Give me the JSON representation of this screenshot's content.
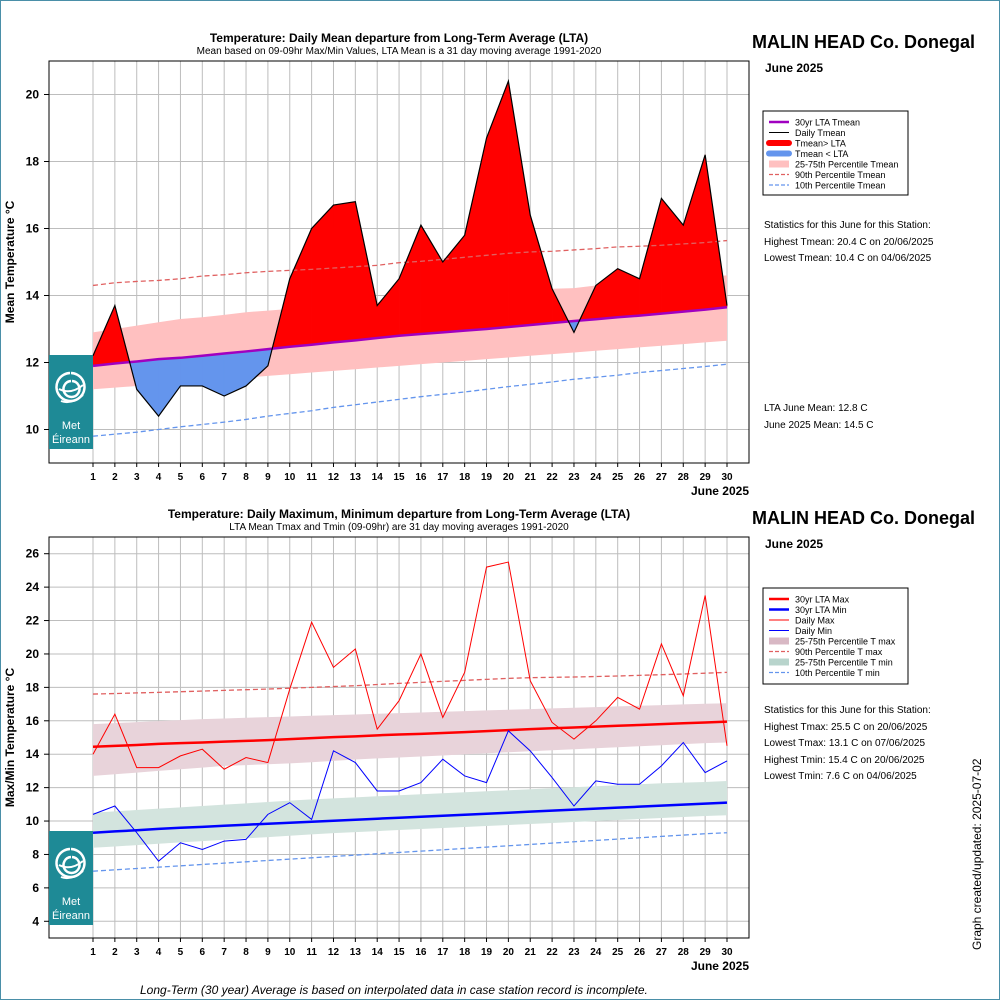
{
  "station": "MALIN HEAD Co. Donegal",
  "period": "June 2025",
  "graph_updated": "Graph created/updated:  2025-07-02",
  "footnote": "Long-Term (30 year) Average is based on interpolated data in case station record is incomplete.",
  "logo_text": [
    "Met",
    "Éireann"
  ],
  "chart_data": [
    {
      "type": "line",
      "title": "Temperature: Daily Mean departure from Long-Term Average (LTA)",
      "subtitle": "Mean based on 09-09hr Max/Min Values, LTA Mean is a 31 day moving average 1991-2020",
      "xlabel": "June 2025",
      "ylabel": "Mean Temperature °C",
      "ylim": [
        9,
        21
      ],
      "yticks": [
        10,
        12,
        14,
        16,
        18,
        20
      ],
      "x": [
        1,
        2,
        3,
        4,
        5,
        6,
        7,
        8,
        9,
        10,
        11,
        12,
        13,
        14,
        15,
        16,
        17,
        18,
        19,
        20,
        21,
        22,
        23,
        24,
        25,
        26,
        27,
        28,
        29,
        30
      ],
      "grid": true,
      "legend_position": "right",
      "legend": [
        {
          "label": "30yr LTA Tmean",
          "color": "#a000c0",
          "kind": "line",
          "width": 2.5
        },
        {
          "label": "Daily Tmean",
          "color": "#000000",
          "kind": "line",
          "width": 1
        },
        {
          "label": "Tmean> LTA",
          "color": "#ff0000",
          "kind": "thick"
        },
        {
          "label": "Tmean < LTA",
          "color": "#6495ed",
          "kind": "thick"
        },
        {
          "label": "25-75th Percentile Tmean",
          "color": "#ffc0c0",
          "kind": "band"
        },
        {
          "label": "90th Percentile Tmean",
          "color": "#e06060",
          "kind": "dash"
        },
        {
          "label": "10th Percentile Tmean",
          "color": "#6495ed",
          "kind": "dash"
        }
      ],
      "series": [
        {
          "name": "Daily Tmean",
          "values": [
            12.2,
            13.7,
            11.2,
            10.4,
            11.3,
            11.3,
            11.0,
            11.3,
            11.9,
            14.5,
            16.0,
            16.7,
            16.8,
            13.7,
            14.5,
            16.1,
            15.0,
            15.8,
            18.7,
            20.4,
            16.4,
            14.2,
            12.9,
            14.3,
            14.8,
            14.5,
            16.9,
            16.1,
            18.2,
            13.7
          ]
        },
        {
          "name": "30yr LTA Tmean",
          "values": [
            11.9,
            11.97,
            12.03,
            12.1,
            12.14,
            12.2,
            12.27,
            12.33,
            12.4,
            12.47,
            12.53,
            12.6,
            12.66,
            12.73,
            12.8,
            12.85,
            12.9,
            12.95,
            13.0,
            13.06,
            13.12,
            13.18,
            13.24,
            13.29,
            13.35,
            13.4,
            13.46,
            13.52,
            13.58,
            13.65
          ]
        },
        {
          "name": "25-75th Percentile Tmean low",
          "values": [
            11.2,
            11.25,
            11.3,
            11.35,
            11.4,
            11.45,
            11.5,
            11.55,
            11.6,
            11.65,
            11.7,
            11.75,
            11.8,
            11.85,
            11.9,
            11.95,
            12.0,
            12.05,
            12.1,
            12.15,
            12.2,
            12.25,
            12.3,
            12.35,
            12.4,
            12.45,
            12.5,
            12.55,
            12.6,
            12.65
          ]
        },
        {
          "name": "25-75th Percentile Tmean high",
          "values": [
            12.9,
            13.0,
            13.1,
            13.2,
            13.3,
            13.35,
            13.42,
            13.5,
            13.55,
            13.6,
            13.65,
            13.7,
            13.75,
            13.8,
            13.85,
            13.9,
            13.95,
            14.0,
            14.05,
            14.1,
            14.15,
            14.2,
            14.22,
            14.3,
            14.35,
            14.4,
            14.45,
            14.5,
            14.55,
            14.6
          ]
        },
        {
          "name": "90th Percentile Tmean",
          "values": [
            14.3,
            14.38,
            14.42,
            14.45,
            14.5,
            14.58,
            14.62,
            14.68,
            14.72,
            14.75,
            14.78,
            14.82,
            14.86,
            14.9,
            14.98,
            15.02,
            15.08,
            15.14,
            15.2,
            15.26,
            15.3,
            15.32,
            15.36,
            15.4,
            15.45,
            15.47,
            15.5,
            15.54,
            15.58,
            15.64
          ]
        },
        {
          "name": "10th Percentile Tmean",
          "values": [
            9.8,
            9.86,
            9.92,
            10.0,
            10.08,
            10.15,
            10.22,
            10.3,
            10.4,
            10.48,
            10.56,
            10.66,
            10.74,
            10.82,
            10.9,
            10.98,
            11.05,
            11.12,
            11.2,
            11.28,
            11.35,
            11.42,
            11.5,
            11.56,
            11.62,
            11.7,
            11.76,
            11.82,
            11.88,
            11.95
          ]
        }
      ],
      "statistics": {
        "heading": "Statistics for this June for this Station:",
        "lines": [
          "Highest Tmean: 20.4 C on 20/06/2025",
          "Lowest Tmean: 10.4 C on 04/06/2025"
        ],
        "means": [
          "LTA June Mean: 12.8 C",
          "June 2025 Mean: 14.5 C"
        ]
      }
    },
    {
      "type": "line",
      "title": "Temperature: Daily Maximum, Minimum departure from Long-Term Average (LTA)",
      "subtitle": "LTA Mean Tmax and Tmin (09-09hr) are 31 day moving averages 1991-2020",
      "xlabel": "June 2025",
      "ylabel": "Max/Min Temperature °C",
      "ylim": [
        3,
        27
      ],
      "yticks": [
        4,
        6,
        8,
        10,
        12,
        14,
        16,
        18,
        20,
        22,
        24,
        26
      ],
      "x": [
        1,
        2,
        3,
        4,
        5,
        6,
        7,
        8,
        9,
        10,
        11,
        12,
        13,
        14,
        15,
        16,
        17,
        18,
        19,
        20,
        21,
        22,
        23,
        24,
        25,
        26,
        27,
        28,
        29,
        30
      ],
      "grid": true,
      "legend_position": "right",
      "legend": [
        {
          "label": "30yr LTA Max",
          "color": "#ff0000",
          "kind": "line",
          "width": 2.5
        },
        {
          "label": "30yr LTA Min",
          "color": "#0000ff",
          "kind": "line",
          "width": 2.5
        },
        {
          "label": "Daily Max",
          "color": "#ff0000",
          "kind": "line",
          "width": 1
        },
        {
          "label": "Daily Min",
          "color": "#0000ff",
          "kind": "line",
          "width": 1
        },
        {
          "label": "25-75th Percentile T max",
          "color": "#d8b8c4",
          "kind": "band"
        },
        {
          "label": "90th Percentile T max",
          "color": "#e06060",
          "kind": "dash"
        },
        {
          "label": "25-75th Percentile T min",
          "color": "#b8d4cc",
          "kind": "band"
        },
        {
          "label": "10th Percentile T min",
          "color": "#6495ed",
          "kind": "dash"
        }
      ],
      "series": [
        {
          "name": "Daily Max",
          "values": [
            14.0,
            16.4,
            13.2,
            13.2,
            13.9,
            14.3,
            13.1,
            13.8,
            13.5,
            17.9,
            21.9,
            19.2,
            20.3,
            15.5,
            17.2,
            20.0,
            16.2,
            18.9,
            25.2,
            25.5,
            18.4,
            15.9,
            14.9,
            16.0,
            17.4,
            16.7,
            20.6,
            17.5,
            23.5,
            14.5
          ]
        },
        {
          "name": "Daily Min",
          "values": [
            10.4,
            10.9,
            9.3,
            7.6,
            8.7,
            8.3,
            8.8,
            8.9,
            10.4,
            11.1,
            10.1,
            14.2,
            13.5,
            11.8,
            11.8,
            12.3,
            13.7,
            12.7,
            12.3,
            15.4,
            14.2,
            12.6,
            10.9,
            12.4,
            12.2,
            12.2,
            13.3,
            14.7,
            12.9,
            13.6
          ]
        },
        {
          "name": "30yr LTA Max",
          "values": [
            14.45,
            14.5,
            14.55,
            14.62,
            14.66,
            14.7,
            14.75,
            14.8,
            14.84,
            14.9,
            14.96,
            15.02,
            15.07,
            15.13,
            15.18,
            15.22,
            15.27,
            15.32,
            15.38,
            15.44,
            15.5,
            15.55,
            15.6,
            15.65,
            15.7,
            15.75,
            15.8,
            15.85,
            15.9,
            15.95
          ]
        },
        {
          "name": "30yr LTA Min",
          "values": [
            9.3,
            9.38,
            9.45,
            9.53,
            9.6,
            9.65,
            9.72,
            9.78,
            9.84,
            9.9,
            9.96,
            10.02,
            10.08,
            10.14,
            10.2,
            10.26,
            10.32,
            10.38,
            10.44,
            10.5,
            10.56,
            10.62,
            10.68,
            10.74,
            10.8,
            10.86,
            10.92,
            10.98,
            11.04,
            11.1
          ]
        },
        {
          "name": "25-75th Percentile T max low",
          "values": [
            12.7,
            12.8,
            12.9,
            13.0,
            13.1,
            13.2,
            13.3,
            13.35,
            13.4,
            13.45,
            13.52,
            13.6,
            13.68,
            13.75,
            13.8,
            13.86,
            13.92,
            14.0,
            14.06,
            14.12,
            14.18,
            14.24,
            14.3,
            14.36,
            14.42,
            14.48,
            14.54,
            14.6,
            14.66,
            14.7
          ]
        },
        {
          "name": "25-75th Percentile T max high",
          "values": [
            15.8,
            15.86,
            15.92,
            15.98,
            16.04,
            16.1,
            16.14,
            16.18,
            16.22,
            16.26,
            16.3,
            16.34,
            16.38,
            16.42,
            16.46,
            16.5,
            16.54,
            16.58,
            16.62,
            16.66,
            16.7,
            16.74,
            16.78,
            16.82,
            16.86,
            16.9,
            16.94,
            16.98,
            17.02,
            17.05
          ]
        },
        {
          "name": "25-75th Percentile T min low",
          "values": [
            8.4,
            8.48,
            8.56,
            8.64,
            8.72,
            8.8,
            8.88,
            8.96,
            9.04,
            9.12,
            9.2,
            9.28,
            9.34,
            9.4,
            9.46,
            9.52,
            9.58,
            9.64,
            9.7,
            9.76,
            9.82,
            9.88,
            9.94,
            10.0,
            10.06,
            10.12,
            10.18,
            10.24,
            10.3,
            10.35
          ]
        },
        {
          "name": "25-75th Percentile T min high",
          "values": [
            10.5,
            10.58,
            10.66,
            10.74,
            10.82,
            10.9,
            10.98,
            11.06,
            11.14,
            11.22,
            11.3,
            11.36,
            11.42,
            11.48,
            11.54,
            11.6,
            11.66,
            11.72,
            11.78,
            11.84,
            11.9,
            11.96,
            12.02,
            12.08,
            12.14,
            12.2,
            12.26,
            12.3,
            12.34,
            12.4
          ]
        },
        {
          "name": "90th Percentile T max",
          "values": [
            17.6,
            17.63,
            17.67,
            17.7,
            17.74,
            17.78,
            17.82,
            17.86,
            17.9,
            17.95,
            18.0,
            18.05,
            18.1,
            18.17,
            18.24,
            18.3,
            18.36,
            18.42,
            18.48,
            18.54,
            18.58,
            18.6,
            18.62,
            18.65,
            18.68,
            18.72,
            18.76,
            18.8,
            18.85,
            18.9
          ]
        },
        {
          "name": "10th Percentile T min",
          "values": [
            7.0,
            7.08,
            7.16,
            7.24,
            7.32,
            7.4,
            7.48,
            7.56,
            7.64,
            7.72,
            7.8,
            7.88,
            7.96,
            8.04,
            8.12,
            8.2,
            8.28,
            8.36,
            8.44,
            8.52,
            8.6,
            8.68,
            8.76,
            8.84,
            8.92,
            9.0,
            9.08,
            9.16,
            9.24,
            9.3
          ]
        }
      ],
      "statistics": {
        "heading": "Statistics for this June for this Station:",
        "lines": [
          "Highest Tmax: 25.5 C on 20/06/2025",
          "Lowest Tmax: 13.1 C on 07/06/2025",
          "Highest Tmin: 15.4 C on 20/06/2025",
          "Lowest Tmin: 7.6 C on 04/06/2025"
        ]
      }
    }
  ]
}
